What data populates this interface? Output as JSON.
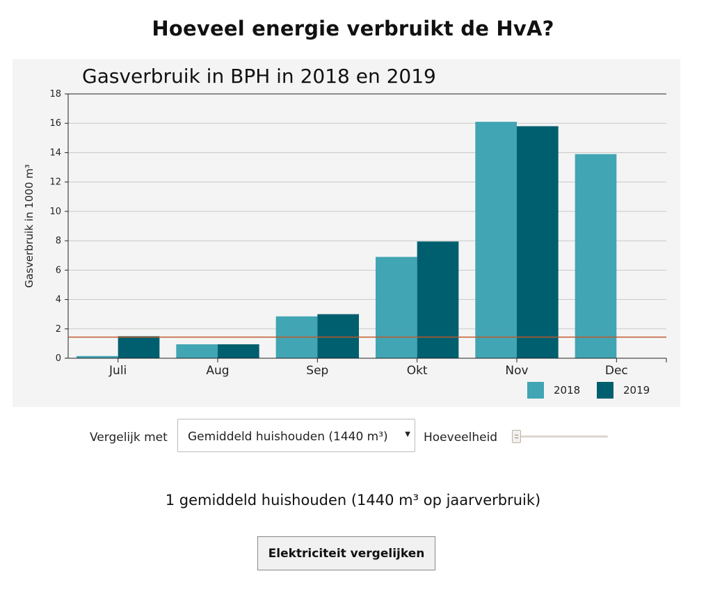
{
  "page": {
    "title": "Hoeveel energie verbruikt de HvA?"
  },
  "chart_data": {
    "type": "bar",
    "title": "Gasverbruik in BPH in 2018 en 2019",
    "xlabel": "",
    "ylabel": "Gasverbruik in 1000 m³",
    "ylim": [
      0,
      18
    ],
    "yticks": [
      "0",
      "2",
      "4",
      "6",
      "8",
      "10",
      "12",
      "14",
      "16",
      "18"
    ],
    "categories": [
      "Juli",
      "Aug",
      "Sep",
      "Okt",
      "Nov",
      "Dec"
    ],
    "series": [
      {
        "name": "2018",
        "color": "#41a5b3",
        "values": [
          0.15,
          0.95,
          2.85,
          6.9,
          16.1,
          13.9
        ]
      },
      {
        "name": "2019",
        "color": "#005f6e",
        "values": [
          1.5,
          0.95,
          3.0,
          7.95,
          15.8,
          null
        ]
      }
    ],
    "reference_line": {
      "value": 1.44,
      "color": "#c0582c"
    },
    "grid": true,
    "legend_position": "bottom-right"
  },
  "controls": {
    "compare_label": "Vergelijk met",
    "compare_selected": "Gemiddeld huishouden (1440 m³)",
    "amount_label": "Hoeveelheid",
    "amount_fraction": 0.0
  },
  "summary": "1 gemiddeld huishouden (1440 m³ op jaarverbruik)",
  "button": {
    "label": "Elektriciteit vergelijken"
  }
}
